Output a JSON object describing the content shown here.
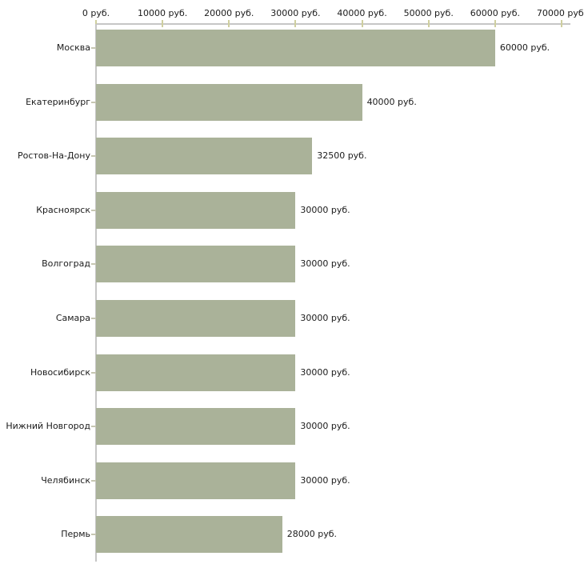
{
  "chart_data": {
    "type": "bar",
    "orientation": "horizontal",
    "title": "",
    "xlabel": "",
    "ylabel": "",
    "unit": "руб.",
    "xlim": [
      0,
      70000
    ],
    "x_tick_step": 10000,
    "x_tick_labels": [
      "0 руб.",
      "10000 руб.",
      "20000 руб.",
      "30000 руб.",
      "40000 руб.",
      "50000 руб.",
      "60000 руб.",
      "70000 руб."
    ],
    "categories": [
      "Москва",
      "Екатеринбург",
      "Ростов-На-Дону",
      "Красноярск",
      "Волгоград",
      "Самара",
      "Новосибирск",
      "Нижний Новгород",
      "Челябинск",
      "Пермь"
    ],
    "values": [
      60000,
      40000,
      32500,
      30000,
      30000,
      30000,
      30000,
      30000,
      30000,
      28000
    ],
    "value_labels": [
      "60000 руб.",
      "40000 руб.",
      "32500 руб.",
      "30000 руб.",
      "30000 руб.",
      "30000 руб.",
      "30000 руб.",
      "30000 руб.",
      "30000 руб.",
      "28000 руб."
    ],
    "grid": "off",
    "legend": "none",
    "colors": {
      "bar": "#aab299",
      "axis": "#c6c6c6",
      "value_axis_tick": "#cfcf9f",
      "category_axis_tick": "#c6c6b2",
      "text": "#1b1b1b",
      "background": "#ffffff"
    }
  }
}
